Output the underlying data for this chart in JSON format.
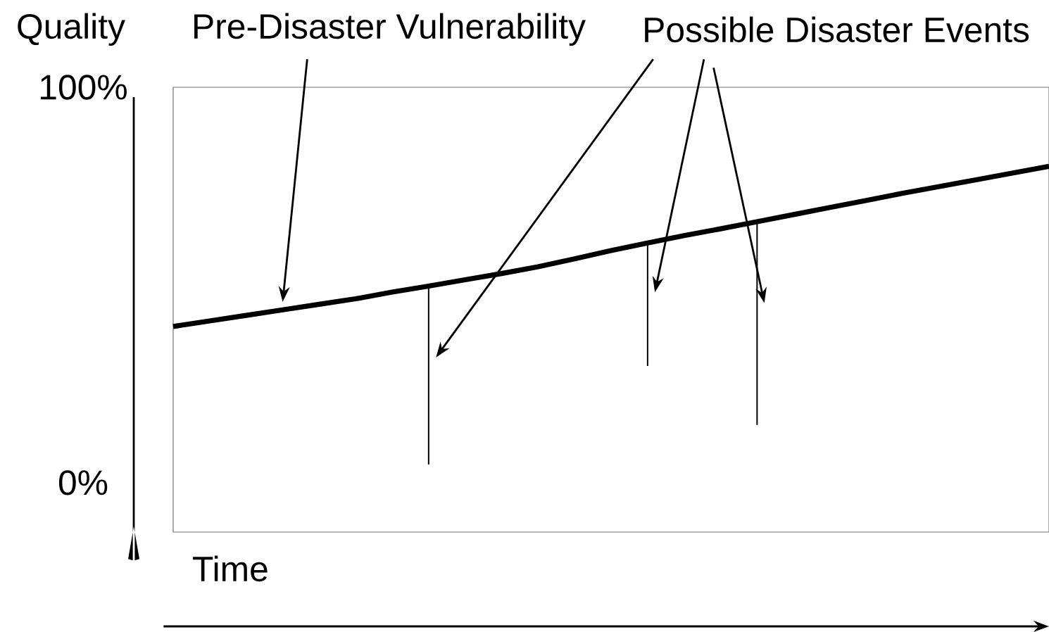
{
  "chart_data": {
    "type": "line",
    "ylabel": "Quality",
    "xlabel": "Time",
    "annotations": [
      "Pre-Disaster Vulnerability",
      "Possible Disaster Events"
    ],
    "categories": [
      null,
      null,
      null,
      null,
      null,
      null,
      null,
      null,
      null,
      null,
      null,
      null,
      null,
      null,
      null,
      null,
      null,
      null,
      null,
      null,
      null,
      null,
      null,
      null,
      null
    ],
    "ylim": [
      -12.5,
      100
    ],
    "yticks": [
      {
        "value": 0,
        "label": "0%"
      },
      {
        "value": 100,
        "label": "100%"
      }
    ],
    "series": [
      {
        "color": "#000000",
        "values": [
          39.5,
          40.9,
          42.3,
          43.7,
          45.1,
          46.5,
          48.2,
          49.7,
          51.3,
          52.9,
          54.6,
          56.6,
          58.7,
          60.6,
          62.5,
          64.2,
          66,
          67.8,
          69.6,
          71.4,
          73.2,
          74.9,
          76.6,
          78.3,
          80
        ],
        "errors": [
          null,
          null,
          null,
          null,
          null,
          null,
          null,
          [
            4.6,
            49.7
          ],
          null,
          null,
          null,
          null,
          null,
          [
            29.5,
            60.6
          ],
          null,
          null,
          [
            14.6,
            66
          ],
          null,
          null,
          null,
          null,
          null,
          null,
          null,
          null
        ]
      }
    ]
  }
}
